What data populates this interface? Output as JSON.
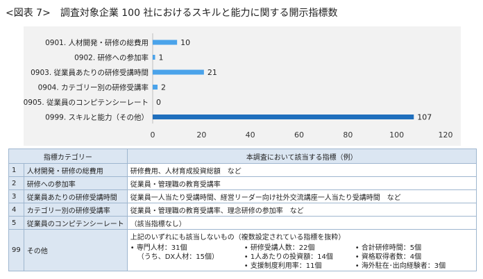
{
  "title": {
    "label": "<図表 7>",
    "text": "調査対象企業 100 社におけるスキルと能力に関する開示指標数"
  },
  "chart_data": {
    "type": "bar",
    "orientation": "horizontal",
    "categories": [
      "0901. 人材開発・研修の総費用",
      "0902. 研修への参加率",
      "0903. 従業員あたりの研修受講時間",
      "0904. カテゴリー別の研修受講率",
      "0905. 従業員のコンピテンシーレート",
      "0999. スキルと能力（その他）"
    ],
    "values": [
      10,
      1,
      21,
      2,
      0,
      107
    ],
    "value_labels": [
      "10",
      "1",
      "21",
      "2",
      "0",
      "107"
    ],
    "xlim": [
      0,
      120
    ],
    "xticks": [
      "0",
      "20",
      "40",
      "60",
      "80",
      "100",
      "120"
    ],
    "bar_colors": [
      "#4aa3ea",
      "#4aa3ea",
      "#4aa3ea",
      "#4aa3ea",
      "#4aa3ea",
      "#1f6fbd"
    ],
    "grid": false
  },
  "table": {
    "headers": [
      "指標カテゴリー",
      "本調査において該当する指標（例）"
    ],
    "rows": [
      {
        "no": "1",
        "category": "人材開発・研修の総費用",
        "indicator": "研修費用、人材育成投資総額　など"
      },
      {
        "no": "2",
        "category": "研修への参加率",
        "indicator": "従業員・管理職の教育受講率"
      },
      {
        "no": "3",
        "category": "従業員あたりの研修受講時間",
        "indicator": "従業員一人当たり受講時間、経営リーダー向け社外交流講座一人当たり受講時間　など"
      },
      {
        "no": "4",
        "category": "カテゴリー別の研修受講率",
        "indicator": "従業員・管理職の教育受講率、理念研修の参加率　など"
      },
      {
        "no": "5",
        "category": "従業員のコンピテンシーレート",
        "indicator": "（該当指標なし）"
      }
    ],
    "other": {
      "no": "99",
      "category": "その他",
      "heading": "上記のいずれにも該当しないもの（複数設定されている指標を抜粋）",
      "col1": [
        "専門人材：31個",
        "（うち、DX人材：15個）"
      ],
      "col2": [
        "研修受講人数：22個",
        "1人あたりの投資額：14個",
        "支援制度利用率：11個"
      ],
      "col3": [
        "合計研修時間：5個",
        "資格取得者数：4個",
        "海外駐在･出向経験者：3個"
      ]
    }
  }
}
